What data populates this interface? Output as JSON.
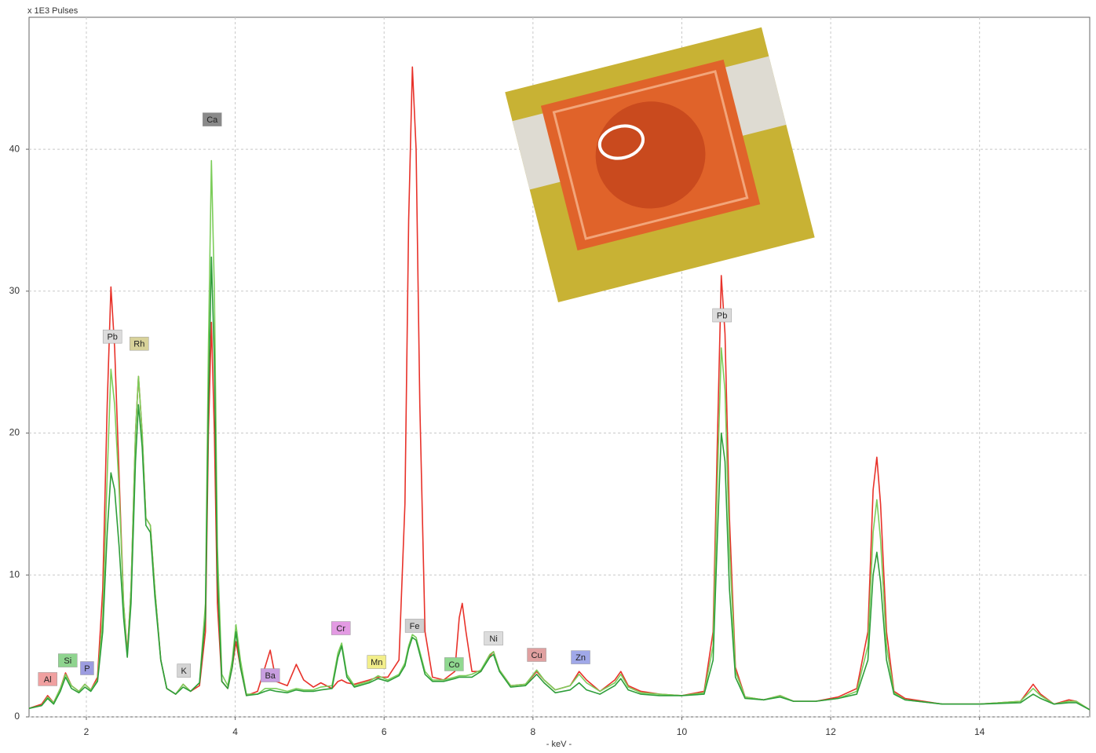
{
  "chart_data": {
    "type": "line",
    "y_label": "x 1E3 Pulses",
    "x_label": "- keV -",
    "xlim": [
      1.23,
      15.48
    ],
    "ylim": [
      0,
      49.3
    ],
    "xticks": [
      2,
      4,
      6,
      8,
      10,
      12,
      14
    ],
    "yticks": [
      0,
      10,
      20,
      30,
      40
    ],
    "grid": true,
    "x": [
      1.23,
      1.4,
      1.48,
      1.56,
      1.65,
      1.72,
      1.8,
      1.9,
      1.98,
      2.06,
      2.15,
      2.22,
      2.28,
      2.33,
      2.38,
      2.44,
      2.5,
      2.55,
      2.6,
      2.66,
      2.7,
      2.75,
      2.8,
      2.86,
      2.92,
      3.0,
      3.08,
      3.2,
      3.3,
      3.4,
      3.52,
      3.6,
      3.64,
      3.68,
      3.72,
      3.76,
      3.82,
      3.9,
      3.96,
      4.01,
      4.07,
      4.15,
      4.3,
      4.4,
      4.47,
      4.55,
      4.7,
      4.82,
      4.92,
      5.05,
      5.15,
      5.3,
      5.38,
      5.43,
      5.5,
      5.6,
      5.8,
      5.92,
      6.05,
      6.2,
      6.28,
      6.33,
      6.38,
      6.43,
      6.48,
      6.55,
      6.65,
      6.8,
      6.95,
      7.01,
      7.05,
      7.1,
      7.18,
      7.3,
      7.42,
      7.47,
      7.55,
      7.7,
      7.9,
      8.05,
      8.15,
      8.3,
      8.5,
      8.62,
      8.72,
      8.9,
      9.1,
      9.18,
      9.28,
      9.45,
      9.7,
      10.0,
      10.3,
      10.42,
      10.48,
      10.53,
      10.58,
      10.64,
      10.72,
      10.85,
      11.1,
      11.32,
      11.5,
      11.8,
      12.1,
      12.35,
      12.5,
      12.57,
      12.62,
      12.67,
      12.75,
      12.85,
      13.0,
      13.5,
      14.0,
      14.55,
      14.72,
      14.82,
      15.0,
      15.2,
      15.3,
      15.48
    ],
    "series": [
      {
        "color": "#e8322a",
        "values": [
          0.6,
          0.9,
          1.5,
          1.0,
          2.0,
          3.1,
          2.2,
          1.8,
          2.3,
          1.9,
          2.8,
          9,
          22,
          30.3,
          26,
          17,
          8,
          4.5,
          9,
          20,
          24,
          20,
          14,
          13.5,
          9,
          4,
          2.0,
          1.6,
          2.3,
          1.8,
          2.2,
          6,
          20,
          27.8,
          20,
          8,
          2.5,
          2.0,
          3.5,
          5.3,
          3.5,
          1.5,
          1.8,
          3.5,
          4.7,
          2.5,
          2.2,
          3.7,
          2.6,
          2.1,
          2.4,
          2.0,
          2.5,
          2.6,
          2.4,
          2.3,
          2.6,
          2.8,
          2.8,
          4,
          15,
          35,
          45.8,
          40,
          22,
          6,
          2.8,
          2.6,
          3.2,
          7,
          8.0,
          6,
          3.2,
          3.2,
          4.3,
          4.6,
          3.3,
          2.2,
          2.3,
          3.2,
          2.6,
          1.9,
          2.2,
          3.2,
          2.6,
          1.8,
          2.6,
          3.2,
          2.2,
          1.8,
          1.6,
          1.5,
          1.8,
          6,
          20,
          31.1,
          27,
          14,
          3.5,
          1.4,
          1.2,
          1.5,
          1.1,
          1.1,
          1.4,
          2.0,
          6,
          16,
          18.3,
          15,
          6,
          1.8,
          1.3,
          0.9,
          0.9,
          1.1,
          2.3,
          1.6,
          0.9,
          1.2,
          1.1,
          0.5
        ]
      },
      {
        "color": "#7ccd5a",
        "values": [
          0.6,
          0.8,
          1.4,
          1.0,
          2.0,
          3.0,
          2.2,
          1.8,
          2.3,
          1.9,
          2.6,
          7,
          17,
          24.5,
          22,
          16,
          8,
          4.3,
          9,
          20,
          24,
          20,
          14,
          13.5,
          9,
          4,
          2.0,
          1.6,
          2.3,
          1.8,
          2.4,
          8,
          26,
          39.2,
          30,
          12,
          3,
          2.2,
          4,
          6.5,
          4,
          1.6,
          1.6,
          2.0,
          2.0,
          2.0,
          1.8,
          2.0,
          1.9,
          1.9,
          2.1,
          2.2,
          4.5,
          5.2,
          3.0,
          2.2,
          2.5,
          2.9,
          2.6,
          3.0,
          3.8,
          5,
          5.8,
          5.6,
          4.6,
          3.2,
          2.6,
          2.6,
          2.8,
          2.9,
          2.9,
          2.9,
          3.0,
          3.3,
          4.4,
          4.6,
          3.3,
          2.2,
          2.3,
          3.3,
          2.6,
          1.9,
          2.2,
          3.0,
          2.4,
          1.8,
          2.4,
          3.0,
          2.1,
          1.7,
          1.6,
          1.5,
          1.7,
          5,
          17,
          26.0,
          23,
          12,
          3.2,
          1.4,
          1.2,
          1.5,
          1.1,
          1.1,
          1.3,
          1.8,
          5,
          13,
          15.3,
          12.5,
          5,
          1.7,
          1.2,
          0.9,
          0.9,
          1.1,
          2.0,
          1.5,
          0.9,
          1.1,
          1.1,
          0.5
        ]
      },
      {
        "color": "#2e9e3a",
        "values": [
          0.6,
          0.8,
          1.3,
          0.9,
          1.8,
          2.8,
          2.0,
          1.7,
          2.1,
          1.8,
          2.5,
          6,
          13,
          17.2,
          16,
          12,
          7,
          4.2,
          8,
          18,
          22,
          19,
          13.5,
          13,
          8.5,
          4,
          2.0,
          1.6,
          2.1,
          1.8,
          2.4,
          7,
          22,
          32.4,
          25,
          10,
          2.5,
          2.0,
          3.5,
          6.0,
          3.5,
          1.5,
          1.6,
          1.8,
          1.9,
          1.8,
          1.7,
          1.9,
          1.8,
          1.8,
          1.9,
          2.0,
          4.2,
          5.0,
          2.8,
          2.1,
          2.4,
          2.7,
          2.5,
          2.9,
          3.6,
          4.8,
          5.6,
          5.4,
          4.4,
          3.0,
          2.5,
          2.5,
          2.7,
          2.8,
          2.8,
          2.8,
          2.8,
          3.2,
          4.2,
          4.4,
          3.2,
          2.1,
          2.2,
          3.0,
          2.4,
          1.7,
          1.9,
          2.4,
          1.9,
          1.6,
          2.2,
          2.7,
          1.9,
          1.6,
          1.5,
          1.5,
          1.6,
          4,
          13,
          20.0,
          18,
          9,
          2.8,
          1.3,
          1.2,
          1.4,
          1.1,
          1.1,
          1.3,
          1.6,
          4,
          10,
          11.6,
          9.5,
          4,
          1.6,
          1.2,
          0.9,
          0.9,
          1.0,
          1.6,
          1.3,
          0.9,
          1.0,
          1.0,
          0.5
        ]
      }
    ],
    "annotations": [
      {
        "text": "Al",
        "x": 1.48,
        "y": 2.66,
        "color": "#f0a0a0"
      },
      {
        "text": "Si",
        "x": 1.75,
        "y": 3.98,
        "color": "#8fd48f"
      },
      {
        "text": "P",
        "x": 2.01,
        "y": 3.43,
        "color": "#9c9ce0"
      },
      {
        "text": "Pb",
        "x": 2.35,
        "y": 26.8,
        "color": "#dcdcdc"
      },
      {
        "text": "Rh",
        "x": 2.71,
        "y": 26.3,
        "color": "#d8d29a"
      },
      {
        "text": "Ca",
        "x": 3.69,
        "y": 42.1,
        "color": "#8a8a8a"
      },
      {
        "text": "K",
        "x": 3.31,
        "y": 3.26,
        "color": "#d4d4d4"
      },
      {
        "text": "Ba",
        "x": 4.47,
        "y": 2.93,
        "color": "#c89ee0"
      },
      {
        "text": "Cr",
        "x": 5.42,
        "y": 6.25,
        "color": "#e39ae3"
      },
      {
        "text": "Mn",
        "x": 5.9,
        "y": 3.87,
        "color": "#f2ee8a"
      },
      {
        "text": "Fe",
        "x": 6.41,
        "y": 6.42,
        "color": "#cfcfcf"
      },
      {
        "text": "Co",
        "x": 6.94,
        "y": 3.71,
        "color": "#90d890"
      },
      {
        "text": "Ni",
        "x": 7.47,
        "y": 5.53,
        "color": "#dcdcdc"
      },
      {
        "text": "Cu",
        "x": 8.05,
        "y": 4.37,
        "color": "#e0a0a0"
      },
      {
        "text": "Zn",
        "x": 8.64,
        "y": 4.2,
        "color": "#a0a8e8"
      },
      {
        "text": "Pb",
        "x": 10.54,
        "y": 28.3,
        "color": "#dcdcdc"
      }
    ]
  }
}
